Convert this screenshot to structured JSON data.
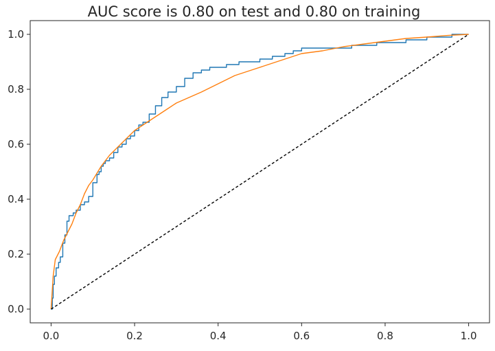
{
  "chart_data": {
    "type": "line",
    "title": "AUC score is 0.80 on test and 0.80 on training",
    "xlabel": "",
    "ylabel": "",
    "xlim": [
      -0.05,
      1.05
    ],
    "ylim": [
      -0.05,
      1.05
    ],
    "xticks": [
      0.0,
      0.2,
      0.4,
      0.6,
      0.8,
      1.0
    ],
    "yticks": [
      0.0,
      0.2,
      0.4,
      0.6,
      0.8,
      1.0
    ],
    "xtick_labels": [
      "0.0",
      "0.2",
      "0.4",
      "0.6",
      "0.8",
      "1.0"
    ],
    "ytick_labels": [
      "0.0",
      "0.2",
      "0.4",
      "0.6",
      "0.8",
      "1.0"
    ],
    "grid": false,
    "legend": "none",
    "series": [
      {
        "color": "#1f77b4",
        "step": true,
        "x": [
          0.0,
          0.003,
          0.005,
          0.008,
          0.012,
          0.018,
          0.022,
          0.028,
          0.033,
          0.038,
          0.043,
          0.048,
          0.053,
          0.06,
          0.07,
          0.08,
          0.09,
          0.1,
          0.11,
          0.115,
          0.12,
          0.125,
          0.13,
          0.14,
          0.15,
          0.16,
          0.17,
          0.18,
          0.19,
          0.2,
          0.21,
          0.22,
          0.235,
          0.25,
          0.265,
          0.28,
          0.3,
          0.32,
          0.34,
          0.36,
          0.38,
          0.4,
          0.42,
          0.45,
          0.48,
          0.5,
          0.53,
          0.56,
          0.58,
          0.6,
          0.63,
          0.67,
          0.72,
          0.78,
          0.85,
          0.9,
          0.96,
          1.0
        ],
        "y": [
          0.0,
          0.04,
          0.09,
          0.12,
          0.15,
          0.17,
          0.19,
          0.24,
          0.27,
          0.32,
          0.34,
          0.34,
          0.35,
          0.36,
          0.38,
          0.39,
          0.41,
          0.46,
          0.49,
          0.5,
          0.52,
          0.53,
          0.54,
          0.55,
          0.57,
          0.59,
          0.6,
          0.62,
          0.63,
          0.65,
          0.67,
          0.68,
          0.71,
          0.74,
          0.77,
          0.79,
          0.81,
          0.84,
          0.86,
          0.87,
          0.88,
          0.88,
          0.89,
          0.9,
          0.9,
          0.91,
          0.92,
          0.93,
          0.94,
          0.95,
          0.95,
          0.95,
          0.96,
          0.97,
          0.98,
          0.99,
          1.0,
          1.0
        ]
      },
      {
        "color": "#ff7f0e",
        "step": false,
        "x": [
          0.0,
          0.005,
          0.01,
          0.02,
          0.03,
          0.04,
          0.05,
          0.06,
          0.07,
          0.08,
          0.09,
          0.1,
          0.12,
          0.14,
          0.16,
          0.18,
          0.2,
          0.22,
          0.25,
          0.28,
          0.3,
          0.33,
          0.36,
          0.4,
          0.44,
          0.48,
          0.52,
          0.56,
          0.6,
          0.65,
          0.7,
          0.75,
          0.8,
          0.85,
          0.9,
          0.95,
          1.0
        ],
        "y": [
          0.0,
          0.12,
          0.18,
          0.21,
          0.25,
          0.28,
          0.31,
          0.35,
          0.38,
          0.42,
          0.45,
          0.47,
          0.52,
          0.56,
          0.59,
          0.62,
          0.65,
          0.67,
          0.7,
          0.73,
          0.75,
          0.77,
          0.79,
          0.82,
          0.85,
          0.87,
          0.89,
          0.91,
          0.93,
          0.94,
          0.955,
          0.965,
          0.975,
          0.985,
          0.99,
          0.996,
          1.0
        ]
      },
      {
        "color": "#000000",
        "dashed": true,
        "x": [
          0.0,
          1.0
        ],
        "y": [
          0.0,
          1.0
        ]
      }
    ]
  }
}
